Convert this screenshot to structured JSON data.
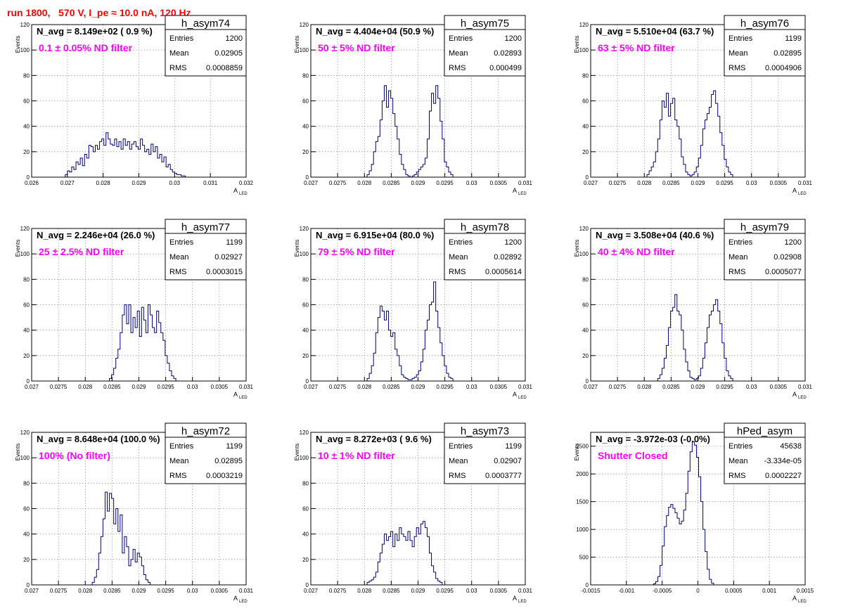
{
  "header": {
    "title": "run 1800,   570 V, I_pe ≈ 10.0 nA, 120 Hz"
  },
  "colors": {
    "hist": "#000080",
    "label": "#ff00ff",
    "title": "#ff0000",
    "grid": "#9a9a9a"
  },
  "axes": {
    "ylabel": "Events",
    "xlabel_main": "A",
    "xlabel_sub": "LED",
    "stats_labels": [
      "Entries",
      "Mean",
      "RMS"
    ]
  },
  "chart_data": [
    {
      "type": "bar",
      "name": "h_asym74",
      "navg": "N_avg = 8.149e+02 ( 0.9 %)",
      "label_value": "0.1",
      "label_rest": "± 0.05% ND filter",
      "stats": {
        "entries": "1200",
        "mean": "0.02905",
        "rms": "0.0008859"
      },
      "xlim": [
        0.026,
        0.032
      ],
      "ylim": [
        0,
        120
      ],
      "xticks": [
        "0.026",
        "0.027",
        "0.028",
        "0.029",
        "0.03",
        "0.031",
        "0.032"
      ],
      "yticks": [
        "0",
        "20",
        "40",
        "60",
        "80",
        "100",
        "120"
      ],
      "xticks_values": [
        0.026,
        0.027,
        0.028,
        0.029,
        0.03,
        0.031,
        0.032
      ],
      "yticks_values": [
        0,
        20,
        40,
        60,
        80,
        100,
        120
      ],
      "bin_start": 0.02694,
      "bin_width": 6e-05,
      "values": [
        2,
        5,
        4,
        8,
        6,
        12,
        10,
        15,
        9,
        18,
        15,
        25,
        24,
        20,
        25,
        22,
        28,
        30,
        25,
        35,
        30,
        26,
        25,
        30,
        24,
        28,
        22,
        30,
        25,
        28,
        22,
        26,
        28,
        24,
        22,
        30,
        25,
        20,
        22,
        18,
        26,
        20,
        24,
        15,
        18,
        12,
        16,
        8,
        10,
        6,
        4,
        3,
        2,
        2,
        1,
        1
      ]
    },
    {
      "type": "bar",
      "name": "h_asym75",
      "navg": "N_avg = 4.404e+04 (50.9 %)",
      "label_value": "50",
      "label_rest": "± 5% ND filter",
      "stats": {
        "entries": "1200",
        "mean": "0.02893",
        "rms": "0.000499"
      },
      "xlim": [
        0.027,
        0.031
      ],
      "ylim": [
        0,
        120
      ],
      "xticks": [
        "0.027",
        "0.0275",
        "0.028",
        "0.0285",
        "0.029",
        "0.0295",
        "0.03",
        "0.0305",
        "0.031"
      ],
      "yticks": [
        "0",
        "20",
        "40",
        "60",
        "80",
        "100",
        "120"
      ],
      "xticks_values": [
        0.027,
        0.0275,
        0.028,
        0.0285,
        0.029,
        0.0295,
        0.03,
        0.0305,
        0.031
      ],
      "yticks_values": [
        0,
        20,
        40,
        60,
        80,
        100,
        120
      ],
      "bin_start": 0.02805,
      "bin_width": 4e-05,
      "values": [
        2,
        5,
        10,
        20,
        28,
        32,
        45,
        60,
        72,
        55,
        68,
        62,
        50,
        40,
        30,
        18,
        10,
        6,
        2,
        1,
        0,
        1,
        2,
        4,
        6,
        8,
        10,
        15,
        30,
        52,
        66,
        58,
        72,
        62,
        44,
        30,
        12,
        8,
        4,
        2
      ]
    },
    {
      "type": "bar",
      "name": "h_asym76",
      "navg": "N_avg = 5.510e+04 (63.7 %)",
      "label_value": "63",
      "label_rest": "± 5% ND filter",
      "stats": {
        "entries": "1199",
        "mean": "0.02895",
        "rms": "0.0004906"
      },
      "xlim": [
        0.027,
        0.031
      ],
      "ylim": [
        0,
        120
      ],
      "xticks": [
        "0.027",
        "0.0275",
        "0.028",
        "0.0285",
        "0.029",
        "0.0295",
        "0.03",
        "0.0305",
        "0.031"
      ],
      "yticks": [
        "0",
        "20",
        "40",
        "60",
        "80",
        "100",
        "120"
      ],
      "xticks_values": [
        0.027,
        0.0275,
        0.028,
        0.0285,
        0.029,
        0.0295,
        0.03,
        0.0305,
        0.031
      ],
      "yticks_values": [
        0,
        20,
        40,
        60,
        80,
        100,
        120
      ],
      "bin_start": 0.02805,
      "bin_width": 4e-05,
      "values": [
        2,
        5,
        8,
        12,
        20,
        30,
        45,
        60,
        55,
        66,
        48,
        58,
        62,
        45,
        40,
        30,
        16,
        10,
        4,
        2,
        1,
        2,
        4,
        8,
        15,
        25,
        38,
        45,
        50,
        55,
        65,
        68,
        58,
        48,
        35,
        25,
        14,
        8,
        4,
        2
      ]
    },
    {
      "type": "bar",
      "name": "h_asym77",
      "navg": "N_avg = 2.246e+04 (26.0 %)",
      "label_value": "25",
      "label_rest": "± 2.5% ND filter",
      "stats": {
        "entries": "1199",
        "mean": "0.02927",
        "rms": "0.0003015"
      },
      "xlim": [
        0.027,
        0.031
      ],
      "ylim": [
        0,
        120
      ],
      "xticks": [
        "0.027",
        "0.0275",
        "0.028",
        "0.0285",
        "0.029",
        "0.0295",
        "0.03",
        "0.0305",
        "0.031"
      ],
      "yticks": [
        "0",
        "20",
        "40",
        "60",
        "80",
        "100",
        "120"
      ],
      "xticks_values": [
        0.027,
        0.0275,
        0.028,
        0.0285,
        0.029,
        0.0295,
        0.03,
        0.0305,
        0.031
      ],
      "yticks_values": [
        0,
        20,
        40,
        60,
        80,
        100,
        120
      ],
      "bin_start": 0.02845,
      "bin_width": 4e-05,
      "values": [
        2,
        5,
        10,
        18,
        25,
        38,
        52,
        60,
        45,
        60,
        38,
        50,
        42,
        55,
        35,
        58,
        48,
        38,
        60,
        52,
        42,
        38,
        55,
        46,
        38,
        32,
        20,
        14,
        8,
        4,
        2
      ]
    },
    {
      "type": "bar",
      "name": "h_asym78",
      "navg": "N_avg = 6.915e+04 (80.0 %)",
      "label_value": "79",
      "label_rest": "± 5% ND filter",
      "stats": {
        "entries": "1200",
        "mean": "0.02892",
        "rms": "0.0005614"
      },
      "xlim": [
        0.027,
        0.031
      ],
      "ylim": [
        0,
        120
      ],
      "xticks": [
        "0.027",
        "0.0275",
        "0.028",
        "0.0285",
        "0.029",
        "0.0295",
        "0.03",
        "0.0305",
        "0.031"
      ],
      "yticks": [
        "0",
        "20",
        "40",
        "60",
        "80",
        "100",
        "120"
      ],
      "xticks_values": [
        0.027,
        0.0275,
        0.028,
        0.0285,
        0.029,
        0.0295,
        0.03,
        0.0305,
        0.031
      ],
      "yticks_values": [
        0,
        20,
        40,
        60,
        80,
        100,
        120
      ],
      "bin_start": 0.02805,
      "bin_width": 4e-05,
      "values": [
        2,
        6,
        12,
        22,
        38,
        50,
        59,
        55,
        48,
        55,
        40,
        35,
        38,
        25,
        20,
        12,
        5,
        3,
        2,
        1,
        1,
        2,
        3,
        5,
        8,
        15,
        25,
        40,
        48,
        60,
        62,
        78,
        55,
        42,
        30,
        20,
        12,
        6,
        3,
        2
      ]
    },
    {
      "type": "bar",
      "name": "h_asym79",
      "navg": "N_avg = 3.508e+04 (40.6 %)",
      "label_value": "40",
      "label_rest": "± 4% ND filter",
      "stats": {
        "entries": "1200",
        "mean": "0.02908",
        "rms": "0.0005077"
      },
      "xlim": [
        0.027,
        0.031
      ],
      "ylim": [
        0,
        120
      ],
      "xticks": [
        "0.027",
        "0.0275",
        "0.028",
        "0.0285",
        "0.029",
        "0.0295",
        "0.03",
        "0.0305",
        "0.031"
      ],
      "yticks": [
        "0",
        "20",
        "40",
        "60",
        "80",
        "100",
        "120"
      ],
      "xticks_values": [
        0.027,
        0.0275,
        0.028,
        0.0285,
        0.029,
        0.0295,
        0.03,
        0.0305,
        0.031
      ],
      "yticks_values": [
        0,
        20,
        40,
        60,
        80,
        100,
        120
      ],
      "bin_start": 0.02825,
      "bin_width": 4e-05,
      "values": [
        2,
        5,
        10,
        18,
        28,
        42,
        55,
        58,
        68,
        55,
        52,
        40,
        25,
        15,
        8,
        3,
        2,
        1,
        2,
        4,
        10,
        18,
        30,
        42,
        52,
        55,
        60,
        64,
        55,
        45,
        30,
        18,
        8,
        4,
        2
      ]
    },
    {
      "type": "bar",
      "name": "h_asym72",
      "navg": "N_avg = 8.648e+04 (100.0 %)",
      "label_value": "100%",
      "label_rest": "(No filter)",
      "stats": {
        "entries": "1199",
        "mean": "0.02895",
        "rms": "0.0003219"
      },
      "xlim": [
        0.027,
        0.031
      ],
      "ylim": [
        0,
        120
      ],
      "xticks": [
        "0.027",
        "0.0275",
        "0.028",
        "0.0285",
        "0.029",
        "0.0295",
        "0.03",
        "0.0305",
        "0.031"
      ],
      "yticks": [
        "0",
        "20",
        "40",
        "60",
        "80",
        "100",
        "120"
      ],
      "xticks_values": [
        0.027,
        0.0275,
        0.028,
        0.0285,
        0.029,
        0.0295,
        0.03,
        0.0305,
        0.031
      ],
      "yticks_values": [
        0,
        20,
        40,
        60,
        80,
        100,
        120
      ],
      "bin_start": 0.02813,
      "bin_width": 4e-05,
      "values": [
        2,
        6,
        12,
        25,
        38,
        52,
        73,
        58,
        72,
        68,
        48,
        60,
        42,
        55,
        25,
        38,
        30,
        15,
        20,
        28,
        18,
        25,
        22,
        15,
        8,
        4,
        2
      ]
    },
    {
      "type": "bar",
      "name": "h_asym73",
      "navg": "N_avg = 8.272e+03 ( 9.6 %)",
      "label_value": "10",
      "label_rest": "± 1% ND filter",
      "stats": {
        "entries": "1199",
        "mean": "0.02907",
        "rms": "0.0003777"
      },
      "xlim": [
        0.027,
        0.031
      ],
      "ylim": [
        0,
        120
      ],
      "xticks": [
        "0.027",
        "0.0275",
        "0.028",
        "0.0285",
        "0.029",
        "0.0295",
        "0.03",
        "0.0305",
        "0.031"
      ],
      "yticks": [
        "0",
        "20",
        "40",
        "60",
        "80",
        "100",
        "120"
      ],
      "xticks_values": [
        0.027,
        0.0275,
        0.028,
        0.0285,
        0.029,
        0.0295,
        0.03,
        0.0305,
        0.031
      ],
      "yticks_values": [
        0,
        20,
        40,
        60,
        80,
        100,
        120
      ],
      "bin_start": 0.02805,
      "bin_width": 4e-05,
      "values": [
        2,
        3,
        4,
        6,
        10,
        18,
        25,
        32,
        40,
        35,
        38,
        42,
        30,
        40,
        35,
        45,
        40,
        38,
        35,
        42,
        35,
        30,
        38,
        45,
        40,
        48,
        50,
        45,
        38,
        25,
        15,
        10,
        5,
        3,
        2
      ]
    },
    {
      "type": "bar",
      "name": "hPed_asym",
      "navg": "N_avg = -3.972e-03 (-0.0%)",
      "label_value": "Shutter Closed",
      "label_rest": "",
      "stats": {
        "entries": "45638",
        "mean": "-3.334e-05",
        "rms": "0.0002227"
      },
      "xlim": [
        -0.0015,
        0.0015
      ],
      "ylim": [
        0,
        2750
      ],
      "xticks": [
        "-0.0015",
        "-0.001",
        "-0.0005",
        "0",
        "0.0005",
        "0.001",
        "0.0015"
      ],
      "yticks": [
        "0",
        "500",
        "1000",
        "1500",
        "2000",
        "2500"
      ],
      "xticks_values": [
        -0.0015,
        -0.001,
        -0.0005,
        0,
        0.0005,
        0.001,
        0.0015
      ],
      "yticks_values": [
        0,
        500,
        1000,
        1500,
        2000,
        2500
      ],
      "bin_start": -0.00062,
      "bin_width": 3e-05,
      "values": [
        20,
        60,
        150,
        350,
        700,
        1050,
        1250,
        1400,
        1450,
        1380,
        1300,
        1200,
        1100,
        1150,
        1350,
        1650,
        2050,
        2400,
        2580,
        2520,
        2300,
        1950,
        1500,
        1000,
        600,
        280,
        100,
        30
      ]
    }
  ]
}
